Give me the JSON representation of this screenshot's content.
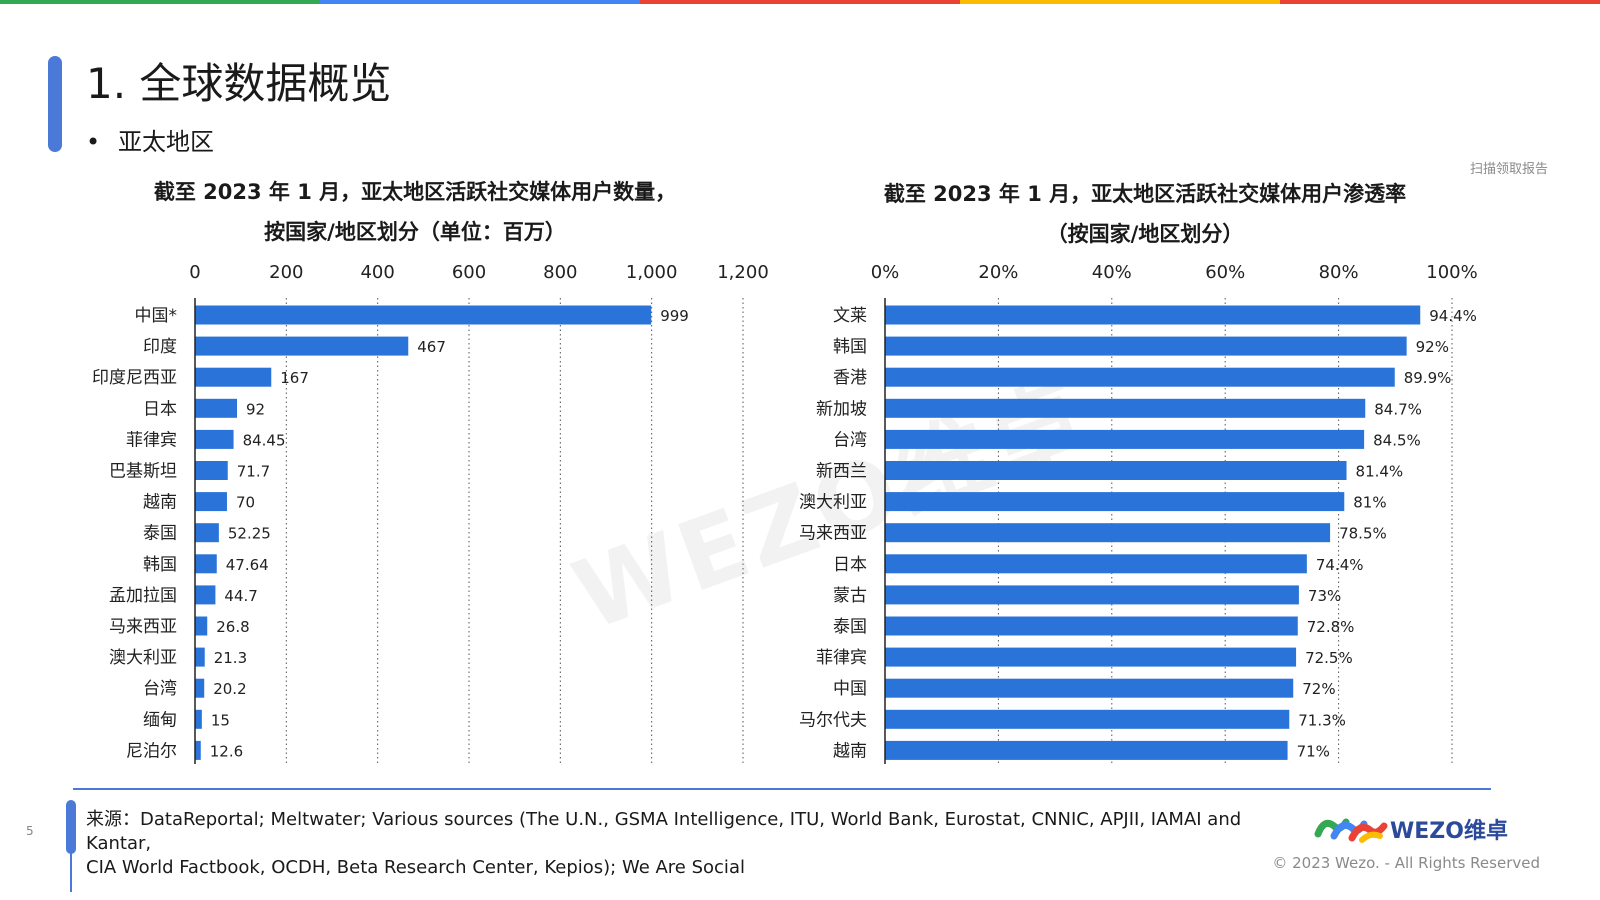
{
  "page": {
    "title": "1. 全球数据概览",
    "subtitle_bullet": "•",
    "subtitle": "亚太地区",
    "scan_note": "扫描领取报告",
    "watermark": "WEZO维卓",
    "page_number": "5",
    "source_lines": [
      "来源：DataReportal; Meltwater; Various sources (The U.N., GSMA Intelligence, ITU, World Bank, Eurostat, CNNIC, APJII, IAMAI and Kantar,",
      "CIA World Factbook, OCDH, Beta Research Center, Kepios); We Are Social"
    ],
    "logo_text": "WEZO维卓",
    "copyright": "© 2023 Wezo. - All Rights Reserved",
    "top_bar_colors": [
      "#34a853",
      "#4285f4",
      "#ea4335",
      "#fbbc05",
      "#ea4335"
    ],
    "accent_color": "#4a79d8",
    "bar_color": "#2a73d9"
  },
  "chart_data": [
    {
      "type": "bar",
      "orientation": "horizontal",
      "title_lines": [
        "截至 2023 年 1 月，亚太地区活跃社交媒体用户数量，",
        "按国家/地区划分（单位：百万）"
      ],
      "categories": [
        "中国*",
        "印度",
        "印度尼西亚",
        "日本",
        "菲律宾",
        "巴基斯坦",
        "越南",
        "泰国",
        "韩国",
        "孟加拉国",
        "马来西亚",
        "澳大利亚",
        "台湾",
        "缅甸",
        "尼泊尔"
      ],
      "values": [
        999,
        467,
        167,
        92,
        84.45,
        71.7,
        70,
        52.25,
        47.64,
        44.7,
        26.8,
        21.3,
        20.2,
        15,
        12.6
      ],
      "value_labels": [
        "999",
        "467",
        "167",
        "92",
        "84.45",
        "71.7",
        "70",
        "52.25",
        "47.64",
        "44.7",
        "26.8",
        "21.3",
        "20.2",
        "15",
        "12.6"
      ],
      "xlim": [
        0,
        1200
      ],
      "ticks": [
        0,
        200,
        400,
        600,
        800,
        1000,
        1200
      ],
      "tick_labels": [
        "0",
        "200",
        "400",
        "600",
        "800",
        "1,000",
        "1,200"
      ],
      "axis_position": "top",
      "grid": "dotted vertical"
    },
    {
      "type": "bar",
      "orientation": "horizontal",
      "title_lines": [
        "截至 2023 年 1 月，亚太地区活跃社交媒体用户渗透率",
        "（按国家/地区划分）"
      ],
      "categories": [
        "文莱",
        "韩国",
        "香港",
        "新加坡",
        "台湾",
        "新西兰",
        "澳大利亚",
        "马来西亚",
        "日本",
        "蒙古",
        "泰国",
        "菲律宾",
        "中国",
        "马尔代夫",
        "越南"
      ],
      "values": [
        94.4,
        92,
        89.9,
        84.7,
        84.5,
        81.4,
        81,
        78.5,
        74.4,
        73,
        72.8,
        72.5,
        72,
        71.3,
        71
      ],
      "value_labels": [
        "94.4%",
        "92%",
        "89.9%",
        "84.7%",
        "84.5%",
        "81.4%",
        "81%",
        "78.5%",
        "74.4%",
        "73%",
        "72.8%",
        "72.5%",
        "72%",
        "71.3%",
        "71%"
      ],
      "xlim": [
        0,
        100
      ],
      "ticks": [
        0,
        20,
        40,
        60,
        80,
        100
      ],
      "tick_labels": [
        "0%",
        "20%",
        "40%",
        "60%",
        "80%",
        "100%"
      ],
      "axis_position": "top",
      "grid": "dotted vertical"
    }
  ]
}
